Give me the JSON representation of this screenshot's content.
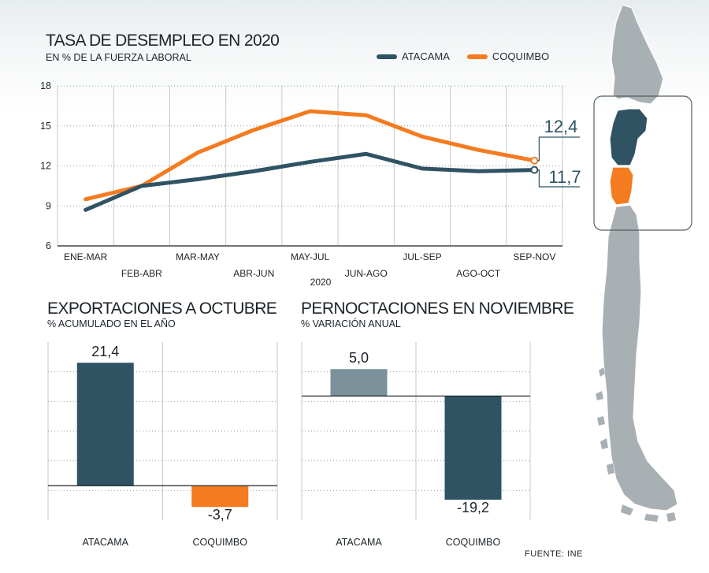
{
  "colors": {
    "atacama": "#2f5363",
    "coquimbo": "#f47b20",
    "atacama_light": "#7b929b",
    "map_gray": "#a9b0b3"
  },
  "line_chart": {
    "title": "TASA DE DESEMPLEO EN 2020",
    "subtitle": "EN % DE LA FUERZA LABORAL",
    "legend": [
      "ATACAMA",
      "COQUIMBO"
    ],
    "year_label": "2020"
  },
  "exports_chart": {
    "title": "EXPORTACIONES A OCTUBRE",
    "subtitle": "% ACUMULADO EN EL AÑO"
  },
  "nights_chart": {
    "title": "PERNOCTACIONES EN NOVIEMBRE",
    "subtitle": "% VARIACIÓN ANUAL"
  },
  "source": "FUENTE: INE",
  "chart_data": [
    {
      "type": "line",
      "title": "TASA DE DESEMPLEO EN 2020",
      "subtitle": "EN % DE LA FUERZA LABORAL",
      "xlabel": "2020",
      "categories": [
        "ENE-MAR",
        "FEB-ABR",
        "MAR-MAY",
        "ABR-JUN",
        "MAY-JUL",
        "JUN-AGO",
        "JUL-SEP",
        "AGO-OCT",
        "SEP-NOV"
      ],
      "series": [
        {
          "name": "ATACAMA",
          "values": [
            8.7,
            10.5,
            11.0,
            11.6,
            12.3,
            12.9,
            11.8,
            11.6,
            11.7
          ]
        },
        {
          "name": "COQUIMBO",
          "values": [
            9.5,
            10.5,
            13.0,
            14.7,
            16.1,
            15.8,
            14.2,
            13.2,
            12.4
          ]
        }
      ],
      "end_labels": [
        "11,7",
        "12,4"
      ],
      "ylim": [
        6,
        18
      ],
      "yticks": [
        6,
        9,
        12,
        15,
        18
      ],
      "grid": true,
      "legend_position": "top"
    },
    {
      "type": "bar",
      "title": "EXPORTACIONES A OCTUBRE",
      "subtitle": "% ACUMULADO EN EL AÑO",
      "categories": [
        "ATACAMA",
        "COQUIMBO"
      ],
      "values": [
        21.4,
        -3.7
      ],
      "labels": [
        "21,4",
        "-3,7"
      ],
      "ylim": [
        -6,
        25
      ]
    },
    {
      "type": "bar",
      "title": "PERNOCTACIONES EN NOVIEMBRE",
      "subtitle": "% VARIACIÓN ANUAL",
      "categories": [
        "ATACAMA",
        "COQUIMBO"
      ],
      "values": [
        5.0,
        -19.2
      ],
      "labels": [
        "5,0",
        "-19,2"
      ],
      "ylim": [
        -23,
        10
      ]
    }
  ]
}
